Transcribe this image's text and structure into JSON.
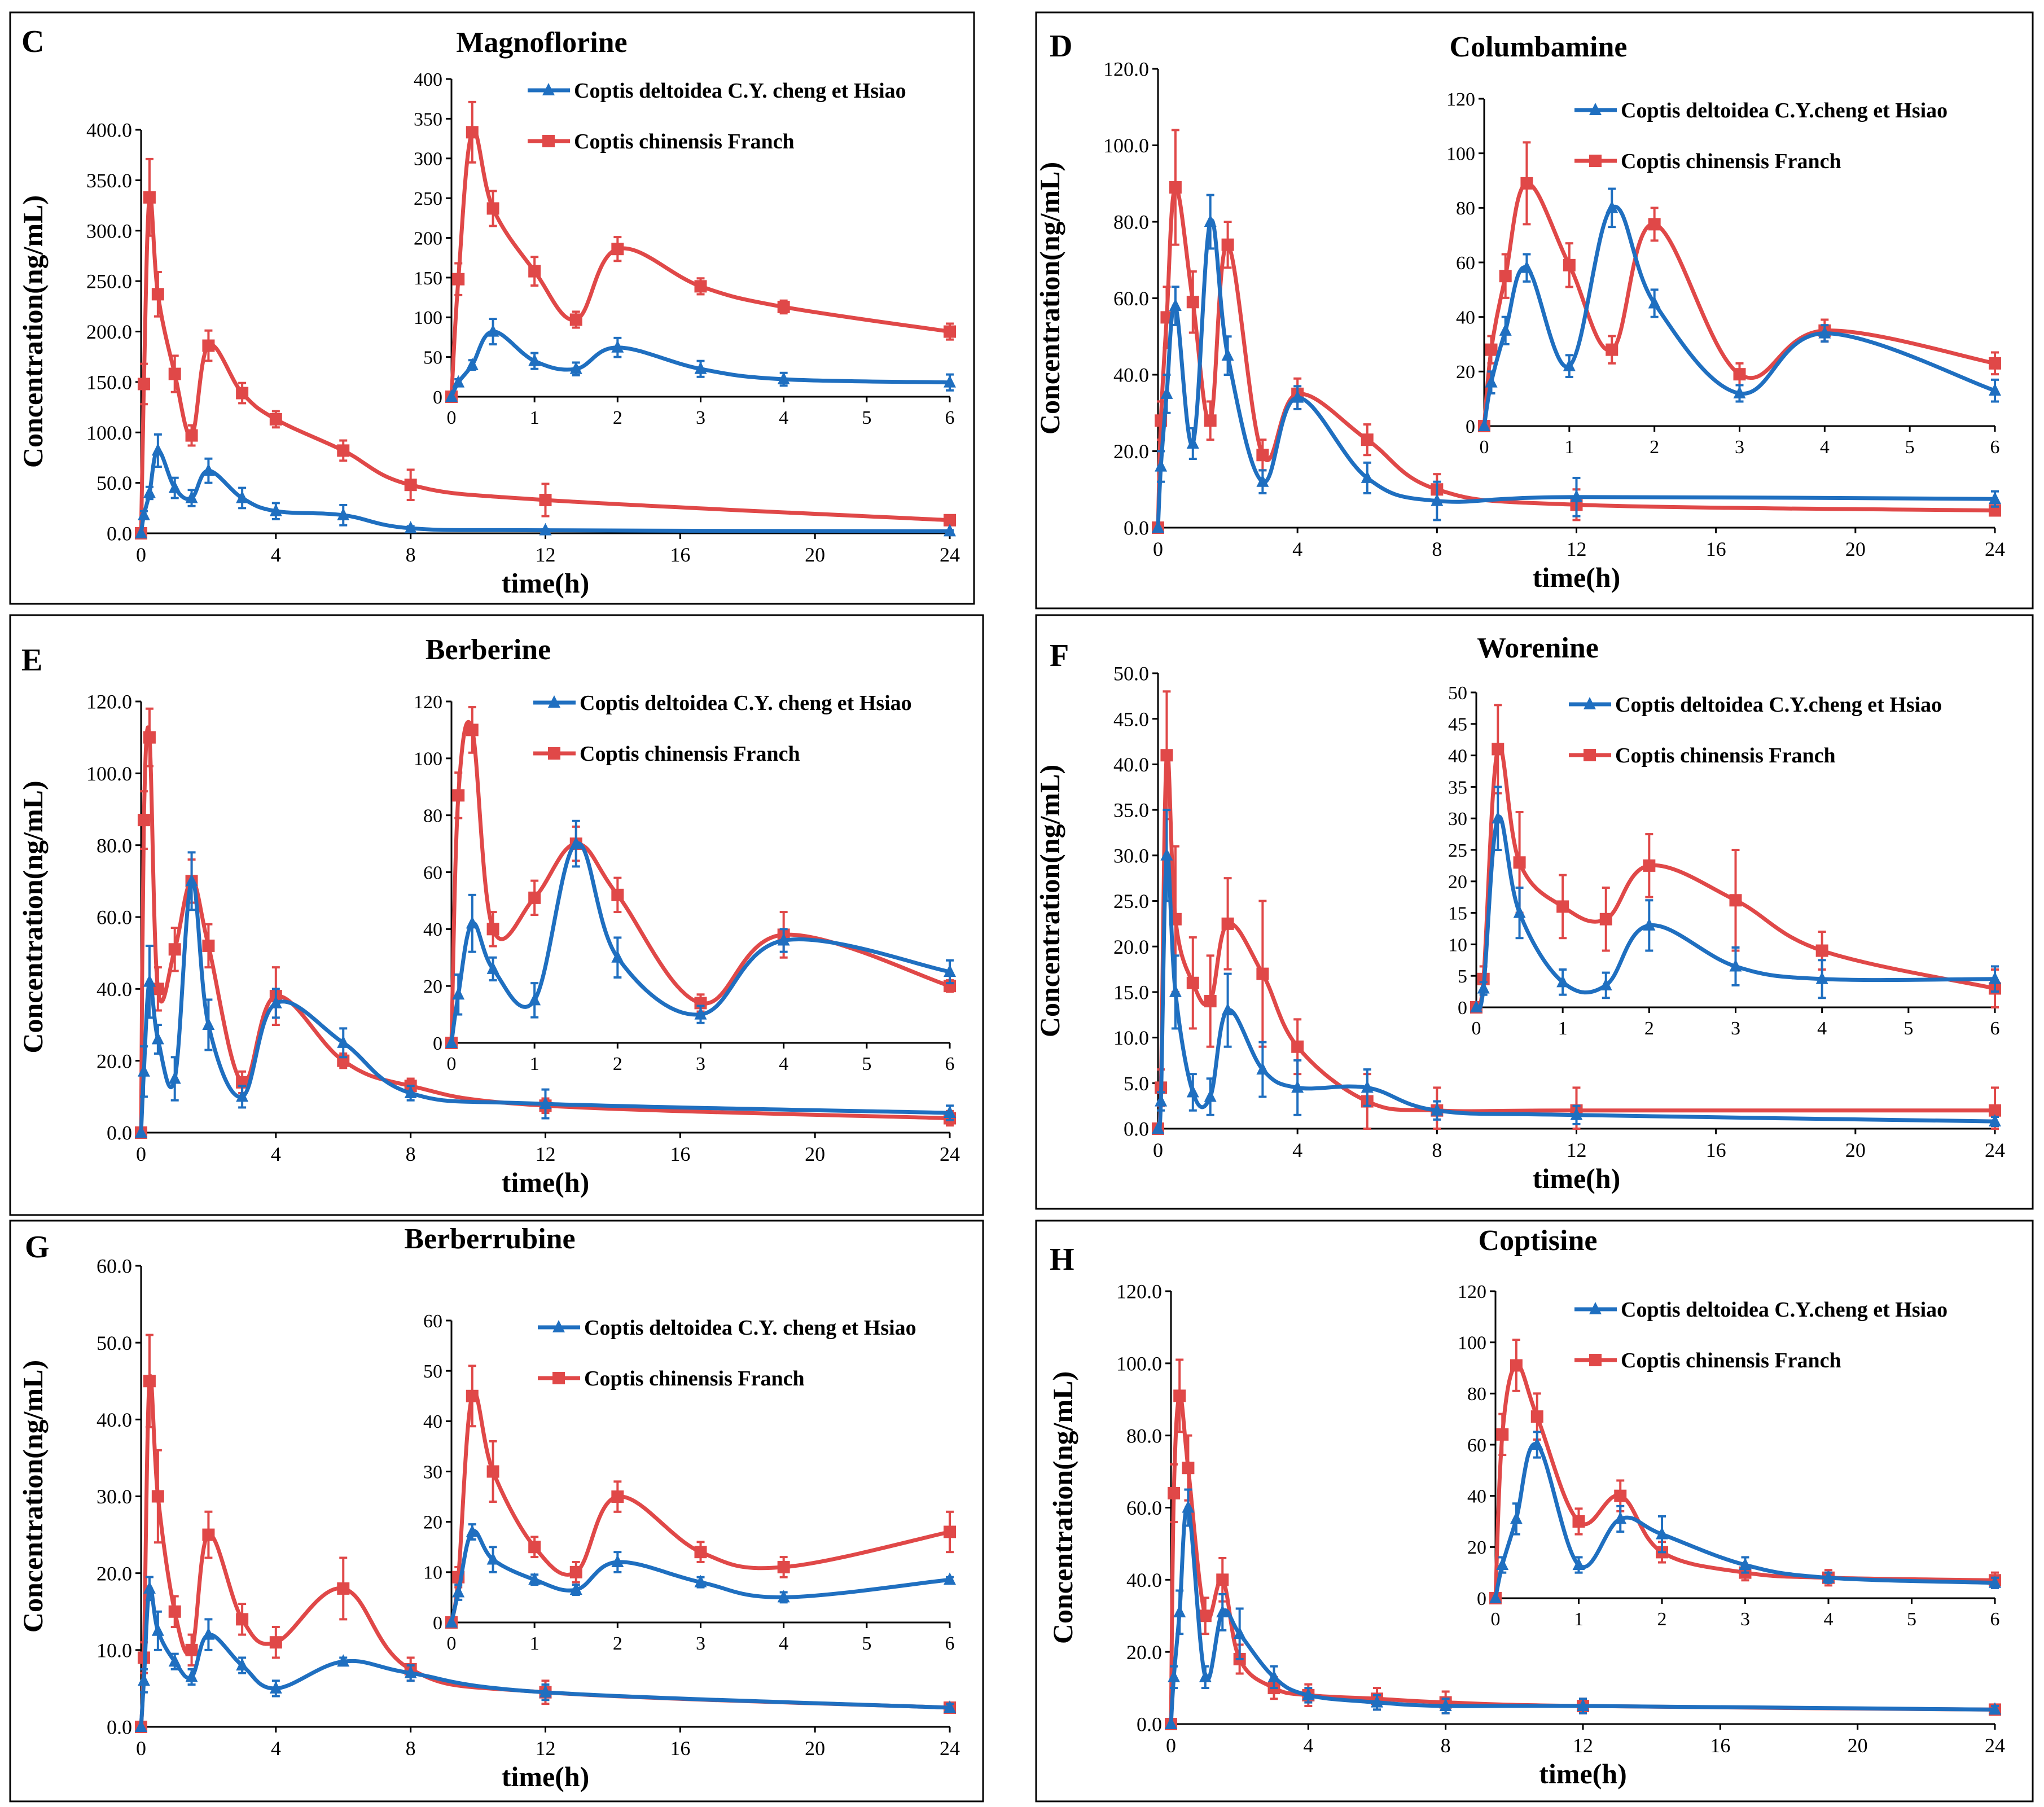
{
  "colors": {
    "deltoidea": "#1f6fc0",
    "chinensis": "#e04848",
    "frame": "#000000"
  },
  "xlabel": "time(h)",
  "ylabel": "Concentration(ng/mL)",
  "chart_data": [
    {
      "letter": "C",
      "title": "Magnoflorine",
      "type": "line",
      "main": {
        "xlim": [
          0,
          24
        ],
        "xticks": [
          0,
          4,
          8,
          12,
          16,
          20,
          24
        ],
        "ylim": [
          0,
          400
        ],
        "yticks": [
          "0.0",
          "50.0",
          "100.0",
          "150.0",
          "200.0",
          "250.0",
          "300.0",
          "350.0",
          "400.0"
        ]
      },
      "inset": {
        "xlim": [
          0,
          6
        ],
        "xticks": [
          0,
          1,
          2,
          3,
          4,
          5,
          6
        ],
        "ylim": [
          0,
          400
        ],
        "yticks": [
          "0",
          "50",
          "100",
          "150",
          "200",
          "250",
          "300",
          "350",
          "400"
        ]
      },
      "series": [
        {
          "key": "deltoidea",
          "name": "Coptis deltoidea C.Y. cheng et Hsiao",
          "marker": "triangle",
          "x": [
            0,
            0.083,
            0.25,
            0.5,
            1,
            1.5,
            2,
            3,
            4,
            6,
            8,
            12,
            24
          ],
          "y": [
            0,
            18,
            40,
            82,
            45,
            35,
            62,
            35,
            22,
            18,
            5,
            3,
            2
          ],
          "err": [
            0,
            4,
            6,
            16,
            10,
            8,
            12,
            10,
            8,
            10,
            2,
            1,
            1
          ]
        },
        {
          "key": "chinensis",
          "name": "Coptis chinensis Franch",
          "marker": "square",
          "x": [
            0,
            0.083,
            0.25,
            0.5,
            1,
            1.5,
            2,
            3,
            4,
            6,
            8,
            12,
            24
          ],
          "y": [
            0,
            148,
            333,
            237,
            158,
            97,
            186,
            139,
            113,
            82,
            48,
            33,
            13
          ],
          "err": [
            0,
            20,
            38,
            22,
            18,
            10,
            15,
            10,
            8,
            10,
            15,
            16,
            4
          ]
        }
      ]
    },
    {
      "letter": "D",
      "title": "Columbamine",
      "type": "line",
      "main": {
        "xlim": [
          0,
          24
        ],
        "xticks": [
          0,
          4,
          8,
          12,
          16,
          20,
          24
        ],
        "ylim": [
          0,
          120
        ],
        "yticks": [
          "0.0",
          "20.0",
          "40.0",
          "60.0",
          "80.0",
          "100.0",
          "120.0"
        ]
      },
      "inset": {
        "xlim": [
          0,
          6
        ],
        "xticks": [
          0,
          1,
          2,
          3,
          4,
          5,
          6
        ],
        "ylim": [
          0,
          120
        ],
        "yticks": [
          "0",
          "20",
          "40",
          "60",
          "80",
          "100",
          "120"
        ]
      },
      "series": [
        {
          "key": "deltoidea",
          "name": "Coptis deltoidea C.Y.cheng et Hsiao",
          "marker": "triangle",
          "x": [
            0,
            0.083,
            0.25,
            0.5,
            1,
            1.5,
            2,
            3,
            4,
            6,
            8,
            12,
            24
          ],
          "y": [
            0,
            16,
            35,
            58,
            22,
            80,
            45,
            12,
            34,
            13,
            7,
            8,
            7.5
          ],
          "err": [
            0,
            4,
            5,
            5,
            4,
            7,
            5,
            3,
            3,
            4,
            5,
            5,
            2
          ]
        },
        {
          "key": "chinensis",
          "name": "Coptis chinensis Franch",
          "marker": "square",
          "x": [
            0,
            0.083,
            0.25,
            0.5,
            1,
            1.5,
            2,
            3,
            4,
            6,
            8,
            12,
            24
          ],
          "y": [
            0,
            28,
            55,
            89,
            59,
            28,
            74,
            19,
            35,
            23,
            10,
            6,
            4.5
          ],
          "err": [
            0,
            5,
            8,
            15,
            8,
            5,
            6,
            4,
            4,
            4,
            4,
            4,
            1
          ]
        }
      ]
    },
    {
      "letter": "E",
      "title": "Berberine",
      "type": "line",
      "main": {
        "xlim": [
          0,
          24
        ],
        "xticks": [
          0,
          4,
          8,
          12,
          16,
          20,
          24
        ],
        "ylim": [
          0,
          120
        ],
        "yticks": [
          "0.0",
          "20.0",
          "40.0",
          "60.0",
          "80.0",
          "100.0",
          "120.0"
        ]
      },
      "inset": {
        "xlim": [
          0,
          6
        ],
        "xticks": [
          0,
          1,
          2,
          3,
          4,
          5,
          6
        ],
        "ylim": [
          0,
          120
        ],
        "yticks": [
          "0",
          "20",
          "40",
          "60",
          "80",
          "100",
          "120"
        ]
      },
      "series": [
        {
          "key": "deltoidea",
          "name": "Coptis deltoidea C.Y. cheng et Hsiao",
          "marker": "triangle",
          "x": [
            0,
            0.083,
            0.25,
            0.5,
            1,
            1.5,
            2,
            3,
            4,
            6,
            8,
            12,
            24
          ],
          "y": [
            0,
            17,
            42,
            26,
            15,
            70,
            30,
            10,
            36,
            25,
            11,
            8,
            5.5
          ],
          "err": [
            0,
            7,
            10,
            4,
            6,
            8,
            7,
            3,
            4,
            4,
            2,
            4,
            2
          ]
        },
        {
          "key": "chinensis",
          "name": "Coptis chinensis Franch",
          "marker": "square",
          "x": [
            0,
            0.083,
            0.25,
            0.5,
            1,
            1.5,
            2,
            3,
            4,
            6,
            8,
            12,
            24
          ],
          "y": [
            0,
            87,
            110,
            40,
            51,
            70,
            52,
            14,
            38,
            20,
            13,
            7.5,
            4
          ],
          "err": [
            0,
            8,
            8,
            6,
            6,
            6,
            6,
            3,
            8,
            2,
            2,
            2,
            2
          ]
        }
      ]
    },
    {
      "letter": "F",
      "title": "Worenine",
      "type": "line",
      "main": {
        "xlim": [
          0,
          24
        ],
        "xticks": [
          0,
          4,
          8,
          12,
          16,
          20,
          24
        ],
        "ylim": [
          0,
          50
        ],
        "yticks": [
          "0.0",
          "5.0",
          "10.0",
          "15.0",
          "20.0",
          "25.0",
          "30.0",
          "35.0",
          "40.0",
          "45.0",
          "50.0"
        ]
      },
      "inset": {
        "xlim": [
          0,
          6
        ],
        "xticks": [
          0,
          1,
          2,
          3,
          4,
          5,
          6
        ],
        "ylim": [
          0,
          50
        ],
        "yticks": [
          "0",
          "5",
          "10",
          "15",
          "20",
          "25",
          "30",
          "35",
          "40",
          "45",
          "50"
        ]
      },
      "series": [
        {
          "key": "deltoidea",
          "name": "Coptis deltoidea C.Y.cheng et Hsiao",
          "marker": "triangle",
          "x": [
            0,
            0.083,
            0.25,
            0.5,
            1,
            1.5,
            2,
            3,
            4,
            6,
            8,
            12,
            24
          ],
          "y": [
            0,
            3,
            30,
            15,
            4,
            3.5,
            13,
            6.5,
            4.5,
            4.5,
            2,
            1.5,
            0.8
          ],
          "err": [
            0,
            1,
            5,
            4,
            2,
            2,
            4,
            3,
            3,
            2,
            1,
            1,
            0.5
          ]
        },
        {
          "key": "chinensis",
          "name": "Coptis chinensis Franch",
          "marker": "square",
          "x": [
            0,
            0.083,
            0.25,
            0.5,
            1,
            1.5,
            2,
            3,
            4,
            6,
            8,
            12,
            24
          ],
          "y": [
            0,
            4.5,
            41,
            23,
            16,
            14,
            22.5,
            17,
            9,
            3,
            2,
            2,
            2
          ],
          "err": [
            0,
            2,
            7,
            8,
            5,
            5,
            5,
            8,
            3,
            3,
            2.5,
            2.5,
            2.5
          ]
        }
      ]
    },
    {
      "letter": "G",
      "title": "Berberrubine",
      "type": "line",
      "main": {
        "xlim": [
          0,
          24
        ],
        "xticks": [
          0,
          4,
          8,
          12,
          16,
          20,
          24
        ],
        "ylim": [
          0,
          60
        ],
        "yticks": [
          "0.0",
          "10.0",
          "20.0",
          "30.0",
          "40.0",
          "50.0",
          "60.0"
        ]
      },
      "inset": {
        "xlim": [
          0,
          6
        ],
        "xticks": [
          0,
          1,
          2,
          3,
          4,
          5,
          6
        ],
        "ylim": [
          0,
          60
        ],
        "yticks": [
          "0",
          "10",
          "20",
          "30",
          "40",
          "50",
          "60"
        ]
      },
      "series": [
        {
          "key": "deltoidea",
          "name": "Coptis deltoidea C.Y. cheng et Hsiao",
          "marker": "triangle",
          "x": [
            0,
            0.083,
            0.25,
            0.5,
            1,
            1.5,
            2,
            3,
            4,
            6,
            8,
            12,
            24
          ],
          "y": [
            0,
            6,
            18,
            12.5,
            8.5,
            6.5,
            12,
            8,
            5,
            8.5,
            7,
            4.5,
            2.5
          ],
          "err": [
            0,
            1.5,
            1.5,
            2.5,
            1,
            1,
            2,
            1,
            1,
            0.5,
            1,
            1,
            0.5
          ]
        },
        {
          "key": "chinensis",
          "name": "Coptis chinensis Franch",
          "marker": "square",
          "x": [
            0,
            0.083,
            0.25,
            0.5,
            1,
            1.5,
            2,
            3,
            4,
            6,
            8,
            12,
            24
          ],
          "y": [
            0,
            9,
            45,
            30,
            15,
            10,
            25,
            14,
            11,
            18,
            7.5,
            4.5,
            2.5
          ],
          "err": [
            0,
            2,
            6,
            6,
            2,
            2,
            3,
            2,
            2,
            4,
            1.5,
            1.5,
            0.5
          ]
        }
      ]
    },
    {
      "letter": "H",
      "title": "Coptisine",
      "type": "line",
      "main": {
        "xlim": [
          0,
          24
        ],
        "xticks": [
          0,
          4,
          8,
          12,
          16,
          20,
          24
        ],
        "ylim": [
          0,
          120
        ],
        "yticks": [
          "0.0",
          "20.0",
          "40.0",
          "60.0",
          "80.0",
          "100.0",
          "120.0"
        ]
      },
      "inset": {
        "xlim": [
          0,
          6
        ],
        "xticks": [
          0,
          1,
          2,
          3,
          4,
          5,
          6
        ],
        "ylim": [
          0,
          120
        ],
        "yticks": [
          "0",
          "20",
          "40",
          "60",
          "80",
          "100",
          "120"
        ]
      },
      "series": [
        {
          "key": "deltoidea",
          "name": "Coptis deltoidea C.Y.cheng et Hsiao",
          "marker": "triangle",
          "x": [
            0,
            0.083,
            0.25,
            0.5,
            1,
            1.5,
            2,
            3,
            4,
            6,
            8,
            12,
            24
          ],
          "y": [
            0,
            13,
            31,
            60,
            13,
            31,
            25,
            13,
            8,
            6,
            5,
            5,
            4
          ],
          "err": [
            0,
            3,
            6,
            5,
            3,
            5,
            7,
            3,
            2,
            2,
            2,
            2,
            1
          ]
        },
        {
          "key": "chinensis",
          "name": "Coptis chinensis Franch",
          "marker": "square",
          "x": [
            0,
            0.083,
            0.25,
            0.5,
            1,
            1.5,
            2,
            3,
            4,
            6,
            8,
            12,
            24
          ],
          "y": [
            0,
            64,
            91,
            71,
            30,
            40,
            18,
            10,
            8,
            7,
            6,
            5,
            4
          ],
          "err": [
            0,
            8,
            10,
            9,
            5,
            6,
            4,
            3,
            3,
            3,
            3,
            2,
            1
          ]
        }
      ]
    }
  ]
}
